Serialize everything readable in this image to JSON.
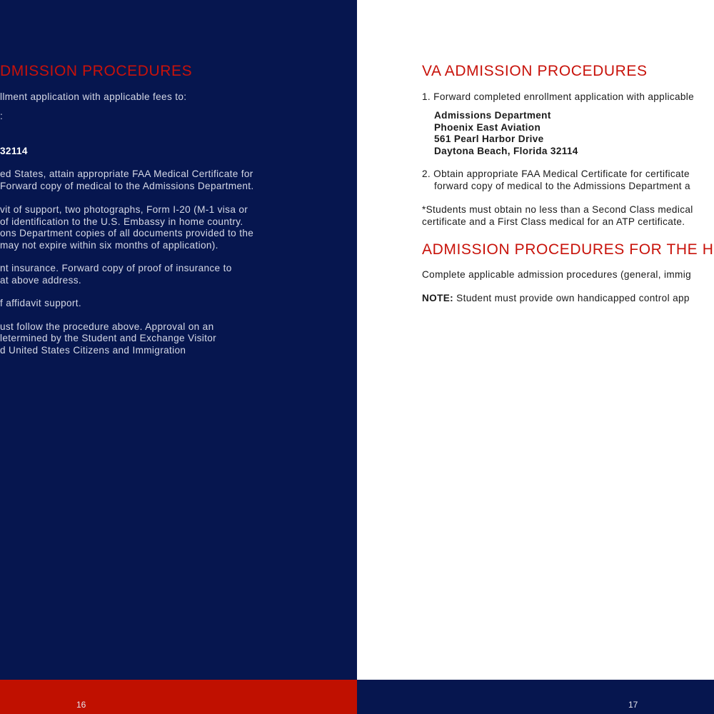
{
  "left_page": {
    "heading": "DMISSION PROCEDURES",
    "lines": [
      "llment application with applicable fees to:",
      ":",
      "32114",
      "ed States, attain appropriate FAA Medical Certificate for",
      " Forward copy of medical to the Admissions Department.",
      "vit of support, two photographs, Form I-20 (M-1 visa or",
      "of identification to the U.S. Embassy in home country.",
      "ons Department copies of all documents provided to the",
      "may not expire within six months of application).",
      "nt insurance. Forward copy of proof of insurance to",
      " at above address.",
      "f affidavit support.",
      "ust follow the procedure above. Approval on an",
      "letermined by the Student and Exchange Visitor",
      "d United States Citizens and Immigration"
    ],
    "page_number": "16"
  },
  "right_page": {
    "heading1": "VA ADMISSION PROCEDURES",
    "item1": "1. Forward completed enrollment application with applicable",
    "address": [
      "Admissions Department",
      "Phoenix East Aviation",
      "561 Pearl Harbor Drive",
      "Daytona Beach, Florida 32114"
    ],
    "item2_line1": "2. Obtain appropriate FAA Medical Certificate for certificate",
    "item2_line2": "forward copy of medical to the Admissions Department a",
    "note_line1": "*Students must obtain no less than a Second Class medical",
    "note_line2": "certificate and a First Class medical for an ATP certificate.",
    "heading2": "ADMISSION PROCEDURES FOR THE H",
    "para": "Complete applicable admission procedures (general, immig",
    "note_label": "NOTE:",
    "note_text": " Student must provide own handicapped control app",
    "page_number": "17"
  },
  "colors": {
    "navy": "#06164f",
    "red": "#c8120a"
  }
}
